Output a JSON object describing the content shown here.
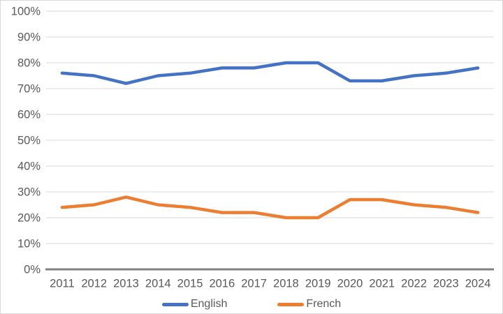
{
  "chart_data": {
    "type": "line",
    "title": "",
    "xlabel": "",
    "ylabel": "",
    "x": [
      "2011",
      "2012",
      "2013",
      "2014",
      "2015",
      "2016",
      "2017",
      "2018",
      "2019",
      "2020",
      "2021",
      "2022",
      "2023",
      "2024"
    ],
    "series": [
      {
        "name": "English",
        "color": "#4472C4",
        "values": [
          76,
          75,
          72,
          75,
          76,
          78,
          78,
          80,
          80,
          73,
          73,
          75,
          76,
          78
        ]
      },
      {
        "name": "French",
        "color": "#ED7D31",
        "values": [
          24,
          25,
          28,
          25,
          24,
          22,
          22,
          20,
          20,
          27,
          27,
          25,
          24,
          22
        ]
      }
    ],
    "ylim": [
      0,
      100
    ],
    "y_ticks": [
      "0%",
      "10%",
      "20%",
      "30%",
      "40%",
      "50%",
      "60%",
      "70%",
      "80%",
      "90%",
      "100%"
    ],
    "grid": "horizontal",
    "legend_position": "bottom",
    "colors": {
      "gridline": "#d9d9d9",
      "axis_line": "#808080",
      "tick_label": "#595959",
      "legend_label": "#595959",
      "background": "#ffffff",
      "border": "#d9d9d9"
    }
  }
}
